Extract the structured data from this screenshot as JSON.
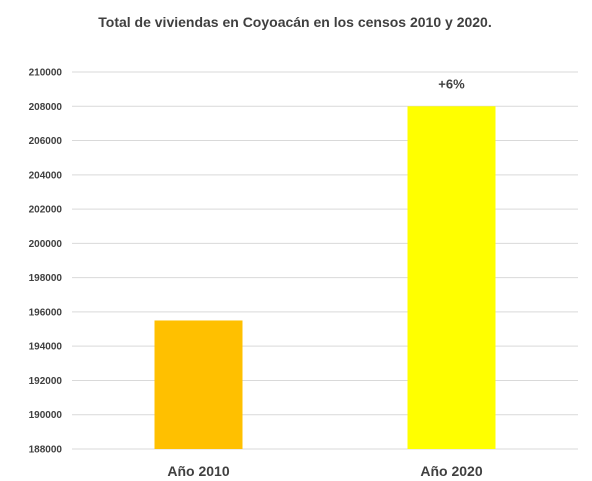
{
  "chart_data": {
    "type": "bar",
    "title": "Total de viviendas en Coyoacán en los censos  2010 y 2020.",
    "xlabel": "",
    "ylabel": "",
    "categories": [
      "Año 2010",
      "Año 2020"
    ],
    "series": [
      {
        "values": [
          195500,
          208000
        ],
        "colors": [
          "#FFC000",
          "#FFFF00"
        ]
      }
    ],
    "data_labels": [
      "",
      "+6%"
    ],
    "ylim": [
      188000,
      210000
    ],
    "yticks": [
      188000,
      190000,
      192000,
      194000,
      196000,
      198000,
      200000,
      202000,
      204000,
      206000,
      208000,
      210000
    ],
    "grid": true,
    "legend": "none"
  }
}
